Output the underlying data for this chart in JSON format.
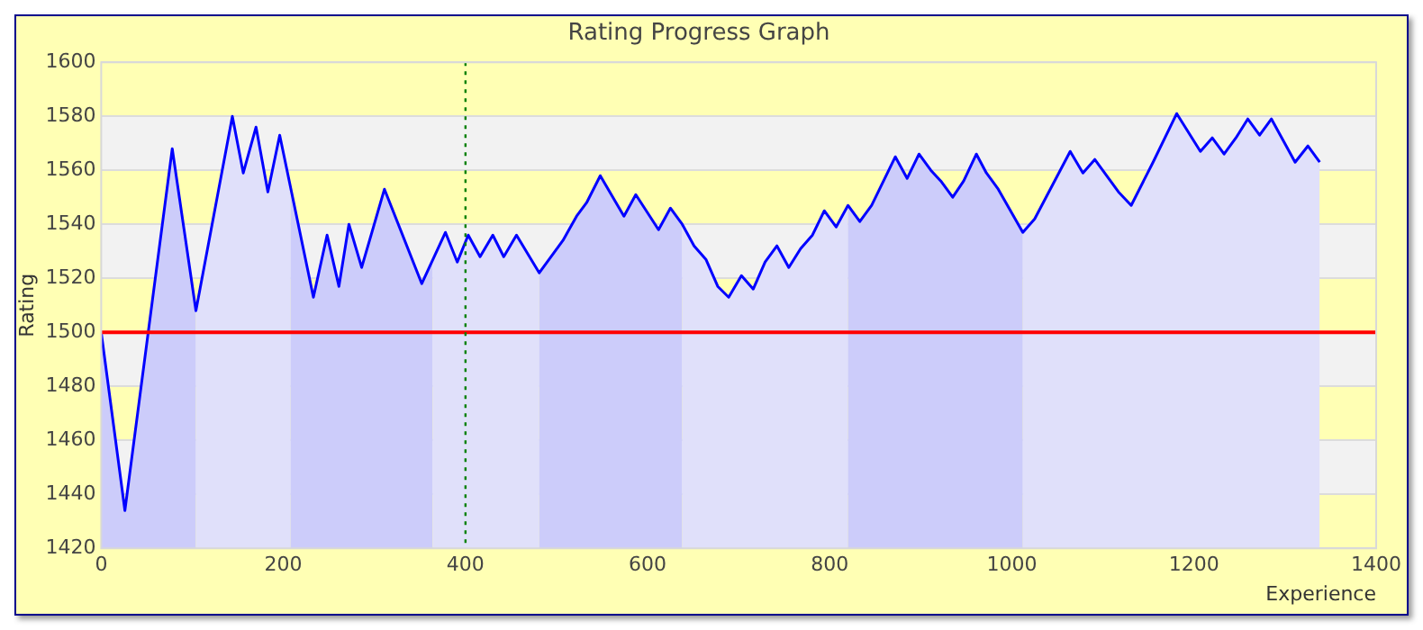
{
  "chart_data": {
    "type": "line",
    "title": "Rating Progress Graph",
    "xlabel": "Experience",
    "ylabel": "Rating",
    "x": [
      0,
      26,
      78,
      104,
      144,
      156,
      170,
      183,
      196,
      233,
      248,
      261,
      272,
      286,
      311,
      352,
      378,
      391,
      403,
      416,
      430,
      442,
      456,
      481,
      507,
      522,
      533,
      548,
      574,
      587,
      612,
      625,
      638,
      651,
      664,
      677,
      689,
      703,
      716,
      729,
      742,
      755,
      768,
      781,
      794,
      807,
      820,
      833,
      846,
      872,
      885,
      898,
      911,
      922,
      935,
      947,
      961,
      972,
      985,
      1012,
      1025,
      1064,
      1078,
      1091,
      1117,
      1131,
      1155,
      1181,
      1207,
      1220,
      1233,
      1246,
      1259,
      1272,
      1285,
      1311,
      1325,
      1338
    ],
    "series": [
      {
        "color": "#0000ff",
        "values": [
          1500,
          1434,
          1568,
          1508,
          1580,
          1559,
          1576,
          1552,
          1573,
          1513,
          1536,
          1517,
          1540,
          1524,
          1553,
          1518,
          1537,
          1526,
          1536,
          1528,
          1536,
          1528,
          1536,
          1522,
          1534,
          1543,
          1548,
          1558,
          1543,
          1551,
          1538,
          1546,
          1540,
          1532,
          1527,
          1517,
          1513,
          1521,
          1516,
          1526,
          1532,
          1524,
          1531,
          1536,
          1545,
          1539,
          1547,
          1541,
          1547,
          1565,
          1557,
          1566,
          1560,
          1556,
          1550,
          1556,
          1566,
          1559,
          1553,
          1537,
          1542,
          1567,
          1559,
          1564,
          1552,
          1547,
          1563,
          1581,
          1567,
          1572,
          1566,
          1572,
          1579,
          1573,
          1579,
          1563,
          1569,
          1563
        ]
      }
    ],
    "xlim": [
      0,
      1400
    ],
    "xticks": [
      0,
      200,
      400,
      600,
      800,
      1000,
      1200,
      1400
    ],
    "ylim": [
      1420,
      1600
    ],
    "yticks": [
      1420,
      1440,
      1460,
      1480,
      1500,
      1520,
      1540,
      1560,
      1580,
      1600
    ],
    "grid": "y",
    "legend": false,
    "marker": "none",
    "ref_lines": [
      {
        "axis": "y",
        "value": 1500,
        "color": "#ff0000"
      },
      {
        "axis": "x",
        "value": 400,
        "color": "#008000",
        "line_style": "dotted"
      }
    ],
    "bands": [
      {
        "axis": "x",
        "from": 0,
        "to": 104,
        "color": "#ccccfa"
      },
      {
        "axis": "x",
        "from": 104,
        "to": 208,
        "color": "#e0e0fa"
      },
      {
        "axis": "x",
        "from": 208,
        "to": 364,
        "color": "#ccccfa"
      },
      {
        "axis": "x",
        "from": 364,
        "to": 481,
        "color": "#e0e0fa"
      },
      {
        "axis": "x",
        "from": 481,
        "to": 638,
        "color": "#ccccfa"
      },
      {
        "axis": "x",
        "from": 638,
        "to": 820,
        "color": "#e0e0fa"
      },
      {
        "axis": "x",
        "from": 820,
        "to": 1012,
        "color": "#ccccfa"
      },
      {
        "axis": "x",
        "from": 1012,
        "to": 1338,
        "color": "#e0e0fa"
      }
    ]
  }
}
